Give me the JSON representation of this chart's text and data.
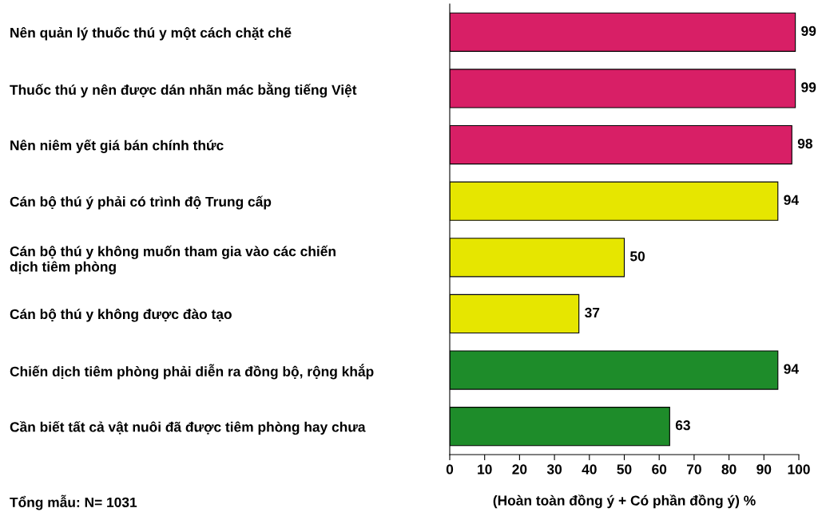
{
  "chart_data": {
    "type": "bar",
    "orientation": "horizontal",
    "categories": [
      "Nên quản lý thuốc thú y một cách chặt chẽ",
      "Thuốc thú y nên được dán nhãn mác bằng tiếng Việt",
      "Nên niêm yết giá bán chính thức",
      "Cán bộ thú ý phải có trình độ Trung cấp",
      "Cán bộ thú y không muốn tham gia vào các chiến\ndịch tiêm phòng",
      "Cán bộ thú y không được đào tạo",
      "Chiến dịch tiêm phòng phải diễn ra đồng bộ, rộng khắp",
      "Cần biết tất cả vật nuôi đã được tiêm phòng hay chưa"
    ],
    "values": [
      99,
      99,
      98,
      94,
      50,
      37,
      94,
      63
    ],
    "colors": [
      "#d81f66",
      "#d81f66",
      "#d81f66",
      "#e6e600",
      "#e6e600",
      "#e6e600",
      "#1e8c2a",
      "#1e8c2a"
    ],
    "xlim": [
      0,
      100
    ],
    "xticks": [
      0,
      10,
      20,
      30,
      40,
      50,
      60,
      70,
      80,
      90,
      100
    ],
    "xlabel": "(Hoàn toàn đồng ý + Có phần đồng ý) %",
    "data_labels": true,
    "grid": false,
    "legend": false,
    "annotations": [
      "Tổng mẫu: N= 1031"
    ]
  }
}
